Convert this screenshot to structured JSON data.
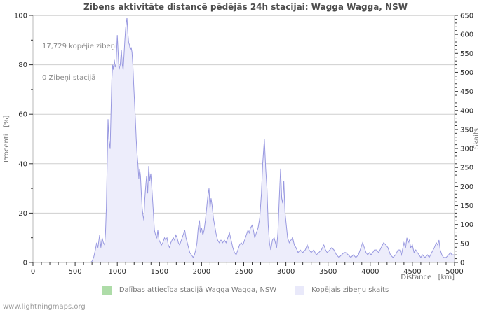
{
  "page": {
    "watermark": "www.lightningmaps.org"
  },
  "chart": {
    "title": "Zibens aktivitāte distancē pēdējās 24h stacijai: Wagga Wagga, NSW",
    "annotation_line1": "17,729 kopējie zibeņi",
    "annotation_line2": "0 Zibeņi stacijā",
    "y_left_label": "Procenti   [%]",
    "y_right_label": "Skaits",
    "x_axis_label": "Distance   [km]",
    "legend": [
      {
        "label": "Dalības attiecība stacijā Wagga Wagga, NSW",
        "color": "#aedca8"
      },
      {
        "label": "Kopējais zibeņu skaits",
        "color": "#e9e9fa"
      }
    ]
  },
  "chart_data": {
    "type": "area",
    "title": "Zibens aktivitāte distancē pēdējās 24h stacijai: Wagga Wagga, NSW",
    "xlabel": "Distance [km]",
    "ylabel_left": "Procenti [%]",
    "ylabel_right": "Skaits",
    "xlim": [
      0,
      5000
    ],
    "ylim_left": [
      0,
      100
    ],
    "ylim_right": [
      0,
      650
    ],
    "x_major_tick": 500,
    "x_minor_tick": 100,
    "y_left_major_tick": 20,
    "y_left_minor_tick": 10,
    "y_right_major_tick": 50,
    "y_right_minor_tick": 10,
    "grid": "horizontal",
    "annotations": [
      "17,729 kopējie zibeņi",
      "0 Zibeņi stacijā"
    ],
    "colors": {
      "line": "#9898e0",
      "fill": "#ededfb",
      "grid": "#cfcfcf",
      "frame": "#b8b8b8",
      "tick": "#333333",
      "tick_label": "#2b2b2b"
    },
    "series": [
      {
        "name": "Dalības attiecība stacijā Wagga Wagga, NSW",
        "axis": "left",
        "color": "#aedca8",
        "visible": false,
        "points": [
          [
            0,
            0
          ],
          [
            5000,
            0
          ]
        ]
      },
      {
        "name": "Kopējais zibeņu skaits",
        "axis": "right",
        "color": "#9898e0",
        "fill": "#ededfb",
        "visible": true,
        "points": [
          [
            0,
            0
          ],
          [
            300,
            0
          ],
          [
            600,
            0
          ],
          [
            680,
            0
          ],
          [
            700,
            3
          ],
          [
            720,
            13
          ],
          [
            740,
            33
          ],
          [
            755,
            52
          ],
          [
            770,
            39
          ],
          [
            790,
            72
          ],
          [
            805,
            39
          ],
          [
            820,
            65
          ],
          [
            835,
            52
          ],
          [
            850,
            46
          ],
          [
            860,
            78
          ],
          [
            870,
            143
          ],
          [
            880,
            260
          ],
          [
            890,
            377
          ],
          [
            900,
            325
          ],
          [
            915,
            299
          ],
          [
            925,
            390
          ],
          [
            935,
            481
          ],
          [
            945,
            520
          ],
          [
            955,
            507
          ],
          [
            965,
            533
          ],
          [
            975,
            514
          ],
          [
            985,
            520
          ],
          [
            1000,
            598
          ],
          [
            1010,
            553
          ],
          [
            1020,
            507
          ],
          [
            1035,
            520
          ],
          [
            1048,
            559
          ],
          [
            1060,
            520
          ],
          [
            1070,
            507
          ],
          [
            1080,
            546
          ],
          [
            1090,
            585
          ],
          [
            1100,
            618
          ],
          [
            1115,
            644
          ],
          [
            1125,
            605
          ],
          [
            1135,
            579
          ],
          [
            1145,
            572
          ],
          [
            1155,
            559
          ],
          [
            1165,
            566
          ],
          [
            1175,
            553
          ],
          [
            1185,
            520
          ],
          [
            1195,
            468
          ],
          [
            1205,
            423
          ],
          [
            1215,
            377
          ],
          [
            1225,
            325
          ],
          [
            1235,
            286
          ],
          [
            1245,
            260
          ],
          [
            1255,
            221
          ],
          [
            1265,
            247
          ],
          [
            1275,
            228
          ],
          [
            1285,
            182
          ],
          [
            1295,
            143
          ],
          [
            1305,
            124
          ],
          [
            1315,
            111
          ],
          [
            1325,
            163
          ],
          [
            1335,
            195
          ],
          [
            1348,
            228
          ],
          [
            1360,
            182
          ],
          [
            1373,
            254
          ],
          [
            1385,
            215
          ],
          [
            1398,
            234
          ],
          [
            1410,
            195
          ],
          [
            1425,
            143
          ],
          [
            1440,
            85
          ],
          [
            1455,
            72
          ],
          [
            1470,
            65
          ],
          [
            1481,
            85
          ],
          [
            1495,
            59
          ],
          [
            1510,
            52
          ],
          [
            1525,
            46
          ],
          [
            1540,
            52
          ],
          [
            1560,
            65
          ],
          [
            1575,
            59
          ],
          [
            1590,
            65
          ],
          [
            1605,
            46
          ],
          [
            1620,
            39
          ],
          [
            1635,
            52
          ],
          [
            1650,
            59
          ],
          [
            1665,
            65
          ],
          [
            1680,
            59
          ],
          [
            1695,
            72
          ],
          [
            1710,
            65
          ],
          [
            1725,
            52
          ],
          [
            1740,
            46
          ],
          [
            1760,
            59
          ],
          [
            1780,
            72
          ],
          [
            1800,
            85
          ],
          [
            1815,
            65
          ],
          [
            1830,
            52
          ],
          [
            1845,
            39
          ],
          [
            1860,
            26
          ],
          [
            1880,
            20
          ],
          [
            1900,
            13
          ],
          [
            1915,
            20
          ],
          [
            1930,
            33
          ],
          [
            1945,
            52
          ],
          [
            1960,
            91
          ],
          [
            1975,
            111
          ],
          [
            1985,
            78
          ],
          [
            2000,
            91
          ],
          [
            2015,
            72
          ],
          [
            2030,
            85
          ],
          [
            2045,
            111
          ],
          [
            2060,
            143
          ],
          [
            2075,
            176
          ],
          [
            2088,
            195
          ],
          [
            2100,
            143
          ],
          [
            2112,
            169
          ],
          [
            2125,
            150
          ],
          [
            2140,
            117
          ],
          [
            2155,
            98
          ],
          [
            2170,
            78
          ],
          [
            2190,
            59
          ],
          [
            2210,
            52
          ],
          [
            2230,
            59
          ],
          [
            2250,
            52
          ],
          [
            2270,
            59
          ],
          [
            2290,
            52
          ],
          [
            2310,
            65
          ],
          [
            2330,
            78
          ],
          [
            2350,
            59
          ],
          [
            2370,
            39
          ],
          [
            2390,
            26
          ],
          [
            2410,
            20
          ],
          [
            2430,
            33
          ],
          [
            2450,
            46
          ],
          [
            2470,
            52
          ],
          [
            2490,
            46
          ],
          [
            2510,
            59
          ],
          [
            2530,
            72
          ],
          [
            2550,
            85
          ],
          [
            2565,
            78
          ],
          [
            2580,
            91
          ],
          [
            2600,
            98
          ],
          [
            2615,
            85
          ],
          [
            2630,
            65
          ],
          [
            2650,
            78
          ],
          [
            2670,
            91
          ],
          [
            2690,
            117
          ],
          [
            2710,
            182
          ],
          [
            2725,
            260
          ],
          [
            2745,
            325
          ],
          [
            2760,
            247
          ],
          [
            2775,
            195
          ],
          [
            2790,
            98
          ],
          [
            2805,
            52
          ],
          [
            2820,
            33
          ],
          [
            2840,
            59
          ],
          [
            2860,
            65
          ],
          [
            2875,
            52
          ],
          [
            2890,
            39
          ],
          [
            2905,
            78
          ],
          [
            2920,
            163
          ],
          [
            2937,
            247
          ],
          [
            2950,
            169
          ],
          [
            2962,
            156
          ],
          [
            2975,
            215
          ],
          [
            2990,
            130
          ],
          [
            3005,
            98
          ],
          [
            3020,
            65
          ],
          [
            3040,
            52
          ],
          [
            3060,
            59
          ],
          [
            3080,
            65
          ],
          [
            3100,
            46
          ],
          [
            3120,
            39
          ],
          [
            3145,
            26
          ],
          [
            3170,
            33
          ],
          [
            3200,
            26
          ],
          [
            3230,
            33
          ],
          [
            3253,
            46
          ],
          [
            3275,
            33
          ],
          [
            3300,
            26
          ],
          [
            3330,
            33
          ],
          [
            3360,
            20
          ],
          [
            3390,
            26
          ],
          [
            3420,
            33
          ],
          [
            3450,
            46
          ],
          [
            3470,
            33
          ],
          [
            3490,
            26
          ],
          [
            3520,
            33
          ],
          [
            3544,
            39
          ],
          [
            3570,
            33
          ],
          [
            3600,
            20
          ],
          [
            3630,
            13
          ],
          [
            3660,
            20
          ],
          [
            3690,
            26
          ],
          [
            3710,
            26
          ],
          [
            3740,
            20
          ],
          [
            3770,
            13
          ],
          [
            3800,
            20
          ],
          [
            3830,
            13
          ],
          [
            3860,
            20
          ],
          [
            3890,
            39
          ],
          [
            3910,
            52
          ],
          [
            3930,
            39
          ],
          [
            3950,
            26
          ],
          [
            3970,
            20
          ],
          [
            3990,
            26
          ],
          [
            4010,
            20
          ],
          [
            4030,
            26
          ],
          [
            4050,
            33
          ],
          [
            4076,
            33
          ],
          [
            4100,
            26
          ],
          [
            4130,
            39
          ],
          [
            4160,
            52
          ],
          [
            4185,
            46
          ],
          [
            4210,
            39
          ],
          [
            4240,
            20
          ],
          [
            4270,
            13
          ],
          [
            4300,
            20
          ],
          [
            4330,
            33
          ],
          [
            4350,
            33
          ],
          [
            4370,
            20
          ],
          [
            4400,
            52
          ],
          [
            4420,
            39
          ],
          [
            4435,
            65
          ],
          [
            4450,
            52
          ],
          [
            4465,
            59
          ],
          [
            4480,
            39
          ],
          [
            4500,
            46
          ],
          [
            4520,
            26
          ],
          [
            4540,
            33
          ],
          [
            4560,
            26
          ],
          [
            4580,
            20
          ],
          [
            4600,
            13
          ],
          [
            4620,
            20
          ],
          [
            4650,
            13
          ],
          [
            4680,
            20
          ],
          [
            4700,
            13
          ],
          [
            4730,
            26
          ],
          [
            4760,
            39
          ],
          [
            4784,
            52
          ],
          [
            4800,
            46
          ],
          [
            4815,
            59
          ],
          [
            4830,
            33
          ],
          [
            4850,
            20
          ],
          [
            4870,
            13
          ],
          [
            4900,
            13
          ],
          [
            4930,
            20
          ],
          [
            4950,
            26
          ],
          [
            4970,
            20
          ],
          [
            5000,
            20
          ]
        ]
      }
    ]
  }
}
